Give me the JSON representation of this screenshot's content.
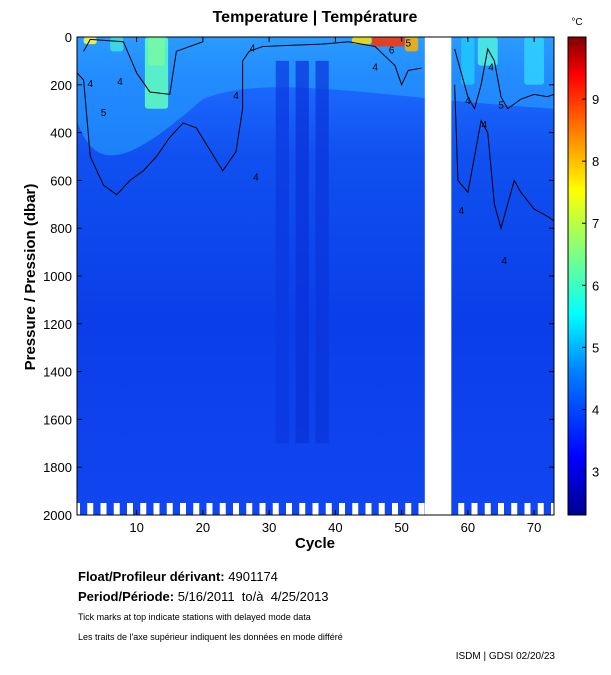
{
  "chart_data": {
    "type": "heatmap",
    "title": "Temperature | Température",
    "xlabel": "Cycle",
    "ylabel": "Pressure / Pression (dbar)",
    "xlim": [
      1,
      73
    ],
    "ylim": [
      2000,
      0
    ],
    "x_ticks": [
      "10",
      "20",
      "30",
      "40",
      "50",
      "60",
      "70"
    ],
    "y_ticks": [
      "0",
      "200",
      "400",
      "600",
      "800",
      "1000",
      "1200",
      "1400",
      "1600",
      "1800",
      "2000"
    ],
    "data_gap_cycles": [
      53.5,
      57.5
    ],
    "colorbar": {
      "unit": "°C",
      "range": [
        2.3,
        10
      ],
      "ticks": [
        "3",
        "4",
        "5",
        "6",
        "7",
        "8",
        "9"
      ],
      "colors": [
        "#00008f",
        "#0000ff",
        "#0080ff",
        "#00ffff",
        "#80ff80",
        "#ffff00",
        "#ff8000",
        "#ff0000",
        "#800000"
      ]
    },
    "contour_labels": [
      "4",
      "5",
      "4",
      "4",
      "4",
      "4",
      "6",
      "4",
      "5",
      "4",
      "4",
      "5",
      "4",
      "4",
      "4"
    ],
    "delayed_mode_markers": "tick marks along bottom edge"
  },
  "float_label": "Float/Profileur dérivant:",
  "float_id": "4901174",
  "period_label": "Period/Période:",
  "period_value": "5/16/2011  to/à  4/25/2013",
  "note_en": "Tick marks at top indicate stations with delayed mode data",
  "note_fr": "Les traits de l'axe supérieur indiquent les données en mode différé",
  "credit": "ISDM | GDSI  02/20/23"
}
